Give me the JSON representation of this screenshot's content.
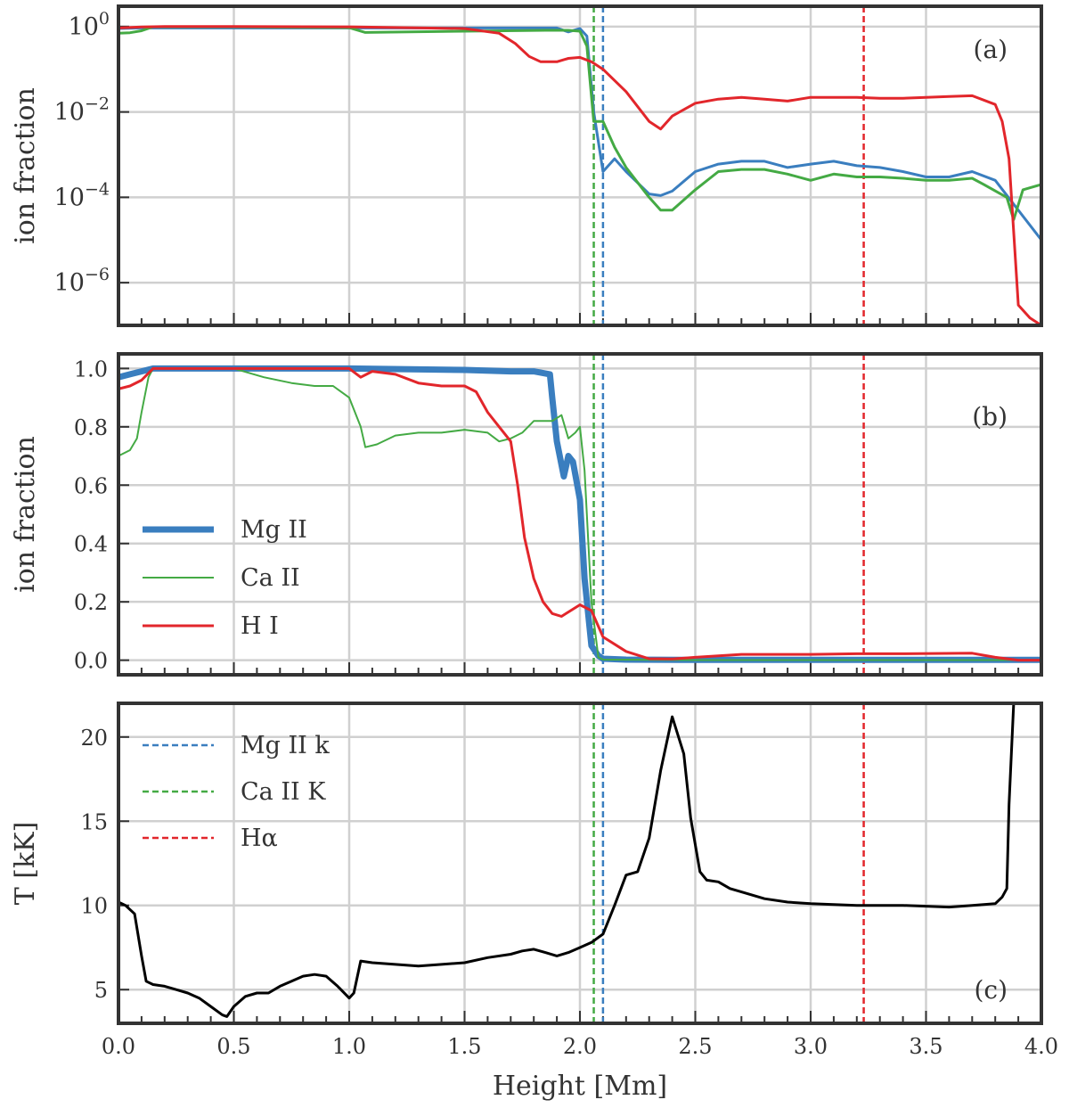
{
  "figure": {
    "xlabel": "Height [Mm]"
  },
  "colors": {
    "mg": "#3a7ebf",
    "ca": "#44aa44",
    "h": "#e2262b",
    "temp": "#000000",
    "grid": "#d0d0d0",
    "frame": "#333333"
  },
  "chart_data": [
    {
      "type": "line",
      "panel_tag": "(a)",
      "ylabel": "ion fraction",
      "yscale": "log",
      "xlim": [
        0,
        4
      ],
      "ylim": [
        1e-07,
        3
      ],
      "grid": true,
      "xticks": [
        0,
        0.5,
        1,
        1.5,
        2,
        2.5,
        3,
        3.5,
        4
      ],
      "yticks": [
        {
          "value": 1,
          "exp": "0"
        },
        {
          "value": 0.01,
          "exp": "−2"
        },
        {
          "value": 0.0001,
          "exp": "−4"
        },
        {
          "value": 1e-06,
          "exp": "−6"
        }
      ],
      "ytick_base": "10",
      "series": [
        {
          "name": "Mg II",
          "color_key": "mg",
          "width": 3,
          "x": [
            0,
            0.1,
            0.2,
            0.5,
            1.0,
            1.5,
            1.85,
            1.9,
            1.95,
            2.0,
            2.03,
            2.06,
            2.08,
            2.1,
            2.15,
            2.2,
            2.3,
            2.35,
            2.4,
            2.5,
            2.6,
            2.7,
            2.8,
            2.9,
            3.0,
            3.1,
            3.2,
            3.3,
            3.4,
            3.5,
            3.6,
            3.7,
            3.8,
            3.9,
            4.0
          ],
          "y": [
            0.9,
            0.93,
            0.93,
            0.93,
            0.93,
            0.93,
            0.93,
            0.93,
            0.75,
            0.9,
            0.6,
            0.01,
            0.002,
            0.0004,
            0.0008,
            0.0004,
            0.00012,
            0.00011,
            0.00014,
            0.0004,
            0.0006,
            0.0007,
            0.0007,
            0.0005,
            0.0006,
            0.0007,
            0.00055,
            0.0005,
            0.0004,
            0.0003,
            0.0003,
            0.0004,
            0.00025,
            5e-05,
            1e-05
          ]
        },
        {
          "name": "Ca II",
          "color_key": "ca",
          "width": 3,
          "x": [
            0,
            0.05,
            0.1,
            0.15,
            0.5,
            1.0,
            1.07,
            1.5,
            1.85,
            1.95,
            2.0,
            2.03,
            2.06,
            2.1,
            2.15,
            2.2,
            2.3,
            2.35,
            2.4,
            2.5,
            2.6,
            2.7,
            2.8,
            2.9,
            3.0,
            3.1,
            3.2,
            3.3,
            3.4,
            3.5,
            3.6,
            3.7,
            3.75,
            3.85,
            3.88,
            3.92,
            4.0
          ],
          "y": [
            0.7,
            0.72,
            0.8,
            0.99,
            0.99,
            0.94,
            0.73,
            0.78,
            0.82,
            0.82,
            0.78,
            0.35,
            0.006,
            0.006,
            0.0015,
            0.0005,
            0.0001,
            5e-05,
            5e-05,
            0.00015,
            0.0004,
            0.00045,
            0.00045,
            0.00035,
            0.00025,
            0.00035,
            0.0003,
            0.0003,
            0.00028,
            0.00025,
            0.00025,
            0.00028,
            0.0002,
            0.0001,
            3e-05,
            0.00015,
            0.0002
          ]
        },
        {
          "name": "H I",
          "color_key": "h",
          "width": 3,
          "x": [
            0,
            0.1,
            0.2,
            0.5,
            1.0,
            1.5,
            1.65,
            1.72,
            1.78,
            1.83,
            1.9,
            1.95,
            2.0,
            2.05,
            2.1,
            2.2,
            2.3,
            2.35,
            2.4,
            2.5,
            2.6,
            2.7,
            2.8,
            2.9,
            3.0,
            3.1,
            3.2,
            3.3,
            3.4,
            3.5,
            3.6,
            3.7,
            3.8,
            3.83,
            3.86,
            3.9,
            3.95,
            4.0
          ],
          "y": [
            0.93,
            0.98,
            1.0,
            1.0,
            0.99,
            0.9,
            0.7,
            0.4,
            0.2,
            0.15,
            0.15,
            0.18,
            0.19,
            0.15,
            0.1,
            0.03,
            0.006,
            0.004,
            0.008,
            0.016,
            0.02,
            0.022,
            0.02,
            0.018,
            0.022,
            0.022,
            0.022,
            0.021,
            0.021,
            0.022,
            0.023,
            0.024,
            0.015,
            0.006,
            0.0008,
            3e-07,
            1.5e-07,
            1e-07
          ]
        }
      ],
      "vlines": [
        {
          "name": "Mg II k",
          "color_key": "mg",
          "x": 2.1
        },
        {
          "name": "Ca II K",
          "color_key": "ca",
          "x": 2.06
        },
        {
          "name": "Hα",
          "color_key": "h",
          "x": 3.23
        }
      ]
    },
    {
      "type": "line",
      "panel_tag": "(b)",
      "ylabel": "ion fraction",
      "yscale": "linear",
      "xlim": [
        0,
        4
      ],
      "ylim": [
        -0.05,
        1.05
      ],
      "grid": true,
      "xticks": [
        0,
        0.5,
        1,
        1.5,
        2,
        2.5,
        3,
        3.5,
        4
      ],
      "yticks": [
        {
          "value": 0,
          "label": "0.0"
        },
        {
          "value": 0.2,
          "label": "0.2"
        },
        {
          "value": 0.4,
          "label": "0.4"
        },
        {
          "value": 0.6,
          "label": "0.6"
        },
        {
          "value": 0.8,
          "label": "0.8"
        },
        {
          "value": 1.0,
          "label": "1.0"
        }
      ],
      "legend": {
        "placement": "center-left",
        "entries": [
          {
            "label": "Mg II",
            "color_key": "mg",
            "width": 7
          },
          {
            "label": "Ca II",
            "color_key": "ca",
            "width": 2
          },
          {
            "label": "H I",
            "color_key": "h",
            "width": 3
          }
        ]
      },
      "series": [
        {
          "name": "Mg II",
          "color_key": "mg",
          "width": 7,
          "x": [
            0,
            0.05,
            0.1,
            0.15,
            0.5,
            1.0,
            1.5,
            1.7,
            1.8,
            1.87,
            1.88,
            1.9,
            1.93,
            1.95,
            1.97,
            2.0,
            2.02,
            2.05,
            2.08,
            2.1,
            2.2,
            2.5,
            3.0,
            3.5,
            4.0
          ],
          "y": [
            0.97,
            0.98,
            0.99,
            1.0,
            1.0,
            1.0,
            0.995,
            0.99,
            0.99,
            0.98,
            0.9,
            0.75,
            0.63,
            0.7,
            0.68,
            0.55,
            0.28,
            0.05,
            0.015,
            0.005,
            0.002,
            0.001,
            0.001,
            0.001,
            0.001
          ]
        },
        {
          "name": "Ca II",
          "color_key": "ca",
          "width": 2,
          "x": [
            0,
            0.05,
            0.08,
            0.1,
            0.13,
            0.15,
            0.5,
            0.63,
            0.75,
            0.85,
            0.93,
            1.0,
            1.05,
            1.07,
            1.12,
            1.2,
            1.3,
            1.4,
            1.5,
            1.6,
            1.65,
            1.7,
            1.75,
            1.8,
            1.88,
            1.92,
            1.95,
            1.98,
            2.0,
            2.02,
            2.05,
            2.08,
            2.1,
            2.5,
            3.0,
            3.5,
            4.0
          ],
          "y": [
            0.7,
            0.72,
            0.76,
            0.85,
            0.97,
            1.0,
            1.0,
            0.97,
            0.95,
            0.94,
            0.94,
            0.9,
            0.8,
            0.73,
            0.74,
            0.77,
            0.78,
            0.78,
            0.79,
            0.78,
            0.75,
            0.76,
            0.78,
            0.82,
            0.82,
            0.84,
            0.76,
            0.78,
            0.8,
            0.65,
            0.2,
            0.01,
            0.002,
            0.0005,
            0.0003,
            0.0003,
            0.0003
          ]
        },
        {
          "name": "H I",
          "color_key": "h",
          "width": 3,
          "x": [
            0,
            0.05,
            0.1,
            0.15,
            0.5,
            1.0,
            1.05,
            1.1,
            1.2,
            1.3,
            1.4,
            1.5,
            1.55,
            1.6,
            1.65,
            1.7,
            1.73,
            1.76,
            1.8,
            1.84,
            1.88,
            1.92,
            1.96,
            2.0,
            2.05,
            2.1,
            2.2,
            2.3,
            2.4,
            2.5,
            2.7,
            3.0,
            3.2,
            3.4,
            3.7,
            3.8,
            3.9,
            4.0
          ],
          "y": [
            0.93,
            0.94,
            0.96,
            1.0,
            1.0,
            1.0,
            0.97,
            0.99,
            0.98,
            0.95,
            0.94,
            0.94,
            0.92,
            0.85,
            0.8,
            0.75,
            0.6,
            0.42,
            0.28,
            0.2,
            0.16,
            0.15,
            0.17,
            0.19,
            0.17,
            0.08,
            0.03,
            0.005,
            0.004,
            0.01,
            0.02,
            0.02,
            0.022,
            0.022,
            0.024,
            0.01,
            0.0,
            0.0
          ]
        }
      ],
      "vlines": [
        {
          "name": "Mg II k",
          "color_key": "mg",
          "x": 2.1
        },
        {
          "name": "Ca II K",
          "color_key": "ca",
          "x": 2.06
        },
        {
          "name": "Hα",
          "color_key": "h",
          "x": 3.23
        }
      ]
    },
    {
      "type": "line",
      "panel_tag": "(c)",
      "ylabel": "T [kK]",
      "yscale": "linear",
      "xlim": [
        0,
        4
      ],
      "ylim": [
        3,
        22
      ],
      "grid": true,
      "xlabel": "Height [Mm]",
      "xticks": [
        0,
        0.5,
        1,
        1.5,
        2,
        2.5,
        3,
        3.5,
        4
      ],
      "xticklabels": [
        "0.0",
        "0.5",
        "1.0",
        "1.5",
        "2.0",
        "2.5",
        "3.0",
        "3.5",
        "4.0"
      ],
      "yticks": [
        {
          "value": 5,
          "label": "5"
        },
        {
          "value": 10,
          "label": "10"
        },
        {
          "value": 15,
          "label": "15"
        },
        {
          "value": 20,
          "label": "20"
        }
      ],
      "legend": {
        "placement": "upper-left",
        "entries": [
          {
            "label": "Mg II k",
            "color_key": "mg",
            "dashed": true
          },
          {
            "label": "Ca II K",
            "color_key": "ca",
            "dashed": true
          },
          {
            "label": "Hα",
            "color_key": "h",
            "dashed": true
          }
        ]
      },
      "series": [
        {
          "name": "Temperature",
          "color_key": "temp",
          "width": 3,
          "x": [
            0,
            0.03,
            0.07,
            0.1,
            0.12,
            0.15,
            0.2,
            0.25,
            0.3,
            0.35,
            0.4,
            0.45,
            0.47,
            0.5,
            0.55,
            0.6,
            0.65,
            0.7,
            0.75,
            0.8,
            0.85,
            0.9,
            0.95,
            1.0,
            1.02,
            1.05,
            1.1,
            1.2,
            1.3,
            1.4,
            1.5,
            1.6,
            1.7,
            1.75,
            1.8,
            1.85,
            1.9,
            1.95,
            2.0,
            2.05,
            2.1,
            2.15,
            2.2,
            2.25,
            2.3,
            2.35,
            2.4,
            2.45,
            2.48,
            2.52,
            2.55,
            2.6,
            2.65,
            2.7,
            2.8,
            2.9,
            3.0,
            3.2,
            3.4,
            3.6,
            3.7,
            3.8,
            3.83,
            3.85,
            3.86,
            3.88
          ],
          "y": [
            10.2,
            10.0,
            9.5,
            7.0,
            5.5,
            5.3,
            5.2,
            5.0,
            4.8,
            4.5,
            4.0,
            3.5,
            3.4,
            4.0,
            4.6,
            4.8,
            4.8,
            5.2,
            5.5,
            5.8,
            5.9,
            5.8,
            5.2,
            4.5,
            4.8,
            6.7,
            6.6,
            6.5,
            6.4,
            6.5,
            6.6,
            6.9,
            7.1,
            7.3,
            7.4,
            7.2,
            7.0,
            7.2,
            7.5,
            7.8,
            8.3,
            10.0,
            11.8,
            12.0,
            14.0,
            18.0,
            21.2,
            19.0,
            15.2,
            12.0,
            11.5,
            11.4,
            11.0,
            10.8,
            10.4,
            10.2,
            10.1,
            10.0,
            10.0,
            9.9,
            10.0,
            10.1,
            10.5,
            11.0,
            16.0,
            22.0
          ]
        }
      ],
      "vlines": [
        {
          "name": "Mg II k",
          "color_key": "mg",
          "x": 2.1
        },
        {
          "name": "Ca II K",
          "color_key": "ca",
          "x": 2.06
        },
        {
          "name": "Hα",
          "color_key": "h",
          "x": 3.23
        }
      ]
    }
  ]
}
